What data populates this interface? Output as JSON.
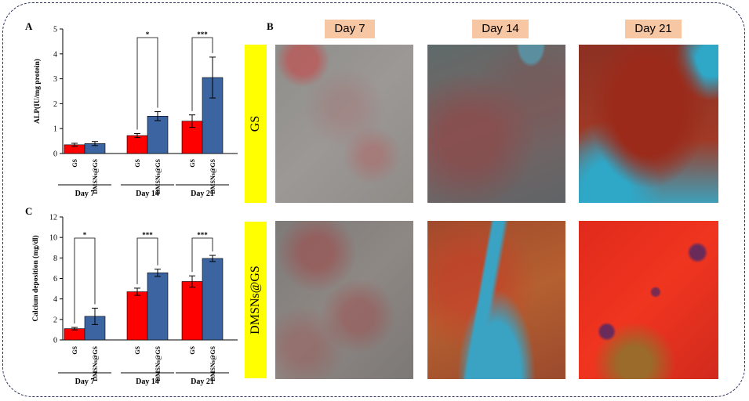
{
  "chart_data": [
    {
      "type": "bar",
      "panel": "A",
      "ylabel": "ALP(IU/mg protein)",
      "ylim": [
        0,
        5
      ],
      "yticks": [
        0,
        1,
        2,
        3,
        4,
        5
      ],
      "categories": [
        "Day 7",
        "Day 14",
        "Day 21"
      ],
      "series": [
        {
          "name": "GS",
          "color": "#ff0000",
          "values": [
            0.35,
            0.72,
            1.3
          ],
          "errors": [
            0.06,
            0.08,
            0.25
          ]
        },
        {
          "name": "DMSNs@GS",
          "color": "#3b64a0",
          "values": [
            0.4,
            1.5,
            3.05
          ],
          "errors": [
            0.08,
            0.18,
            0.82
          ]
        }
      ],
      "significance": [
        {
          "category": "Day 14",
          "label": "*"
        },
        {
          "category": "Day 21",
          "label": "***"
        }
      ]
    },
    {
      "type": "bar",
      "panel": "C",
      "ylabel": "Calcium deposition (mg/dl)",
      "ylim": [
        0,
        12
      ],
      "yticks": [
        0,
        2,
        4,
        6,
        8,
        10,
        12
      ],
      "categories": [
        "Day 7",
        "Day 14",
        "Day 21"
      ],
      "series": [
        {
          "name": "GS",
          "color": "#ff0000",
          "values": [
            1.1,
            4.7,
            5.7
          ],
          "errors": [
            0.12,
            0.35,
            0.55
          ]
        },
        {
          "name": "DMSNs@GS",
          "color": "#3b64a0",
          "values": [
            2.3,
            6.55,
            7.95
          ],
          "errors": [
            0.8,
            0.35,
            0.3
          ]
        }
      ],
      "significance": [
        {
          "category": "Day 7",
          "label": "*"
        },
        {
          "category": "Day 14",
          "label": "***"
        },
        {
          "category": "Day 21",
          "label": "***"
        }
      ]
    }
  ],
  "panel_letters": {
    "a": "A",
    "b": "B",
    "c": "C"
  },
  "micrographs": {
    "columns": [
      "Day 7",
      "Day 14",
      "Day 21"
    ],
    "rows": [
      "GS",
      "DMSNs@GS"
    ]
  }
}
